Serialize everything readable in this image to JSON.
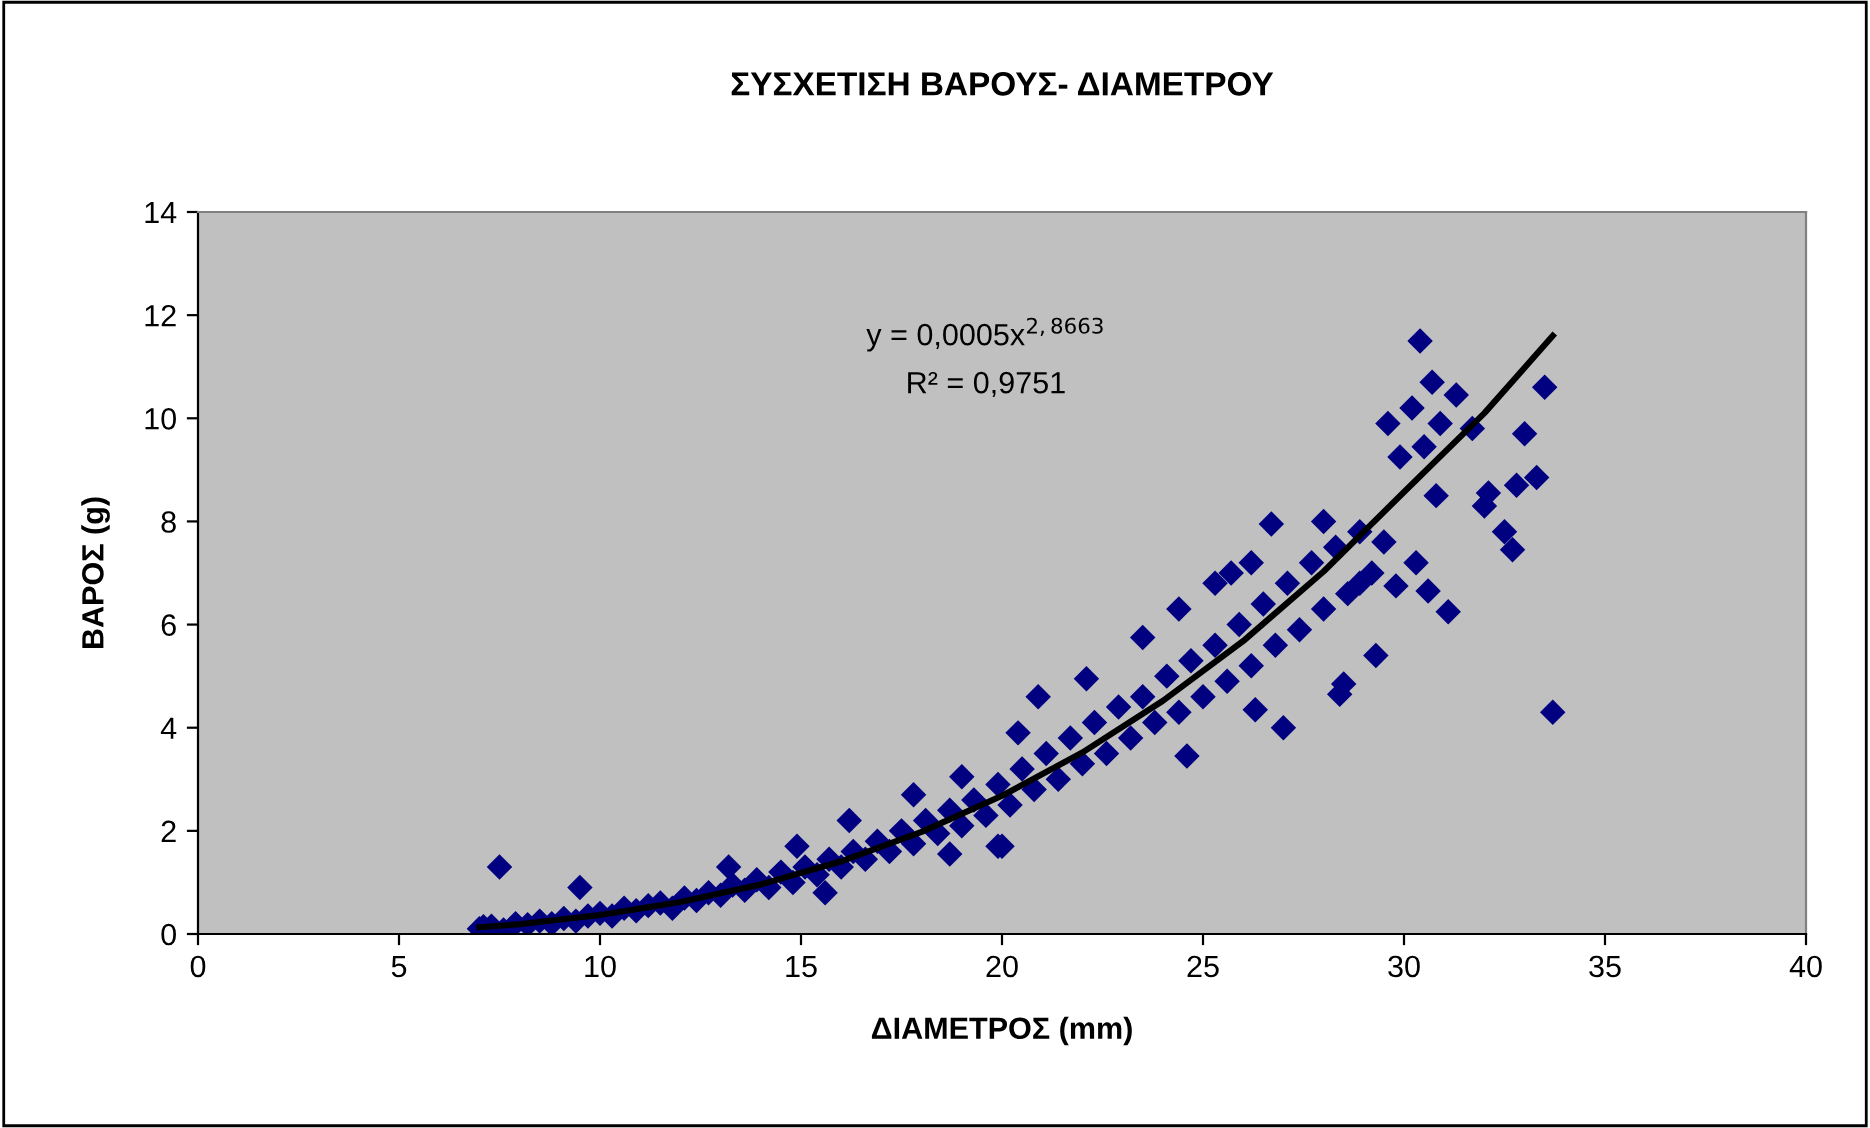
{
  "chart_data": {
    "type": "scatter",
    "title": "ΣΥΣΧΕΤΙΣΗ ΒΑΡΟΥΣ- ΔΙΑΜΕΤΡΟΥ",
    "xlabel": "ΔΙΑΜΕΤΡΟΣ (mm)",
    "ylabel": "ΒΑΡΟΣ (g)",
    "annotations": [
      "y = 0,0005x$^{2,8663}$",
      "R² = 0,9751"
    ],
    "xlim": [
      0,
      40
    ],
    "xticks": [
      0,
      5,
      10,
      15,
      20,
      25,
      30,
      35,
      40
    ],
    "ylim": [
      0,
      14
    ],
    "yticks": [
      0,
      2,
      4,
      6,
      8,
      10,
      12,
      14
    ],
    "grid": false,
    "legend": false,
    "series": [
      {
        "marker": "diamond",
        "color": "#000080",
        "x": [
          7.0,
          7.3,
          7.6,
          7.9,
          8.2,
          8.5,
          8.8,
          9.1,
          9.4,
          9.7,
          10.0,
          10.3,
          10.6,
          10.9,
          11.2,
          11.5,
          11.8,
          12.1,
          12.4,
          12.7,
          13.0,
          13.3,
          13.6,
          13.9,
          14.2,
          14.5,
          14.8,
          15.1,
          15.4,
          15.7,
          16.0,
          16.3,
          16.6,
          16.9,
          17.2,
          17.5,
          17.8,
          18.1,
          18.4,
          18.7,
          19.0,
          19.3,
          19.6,
          19.9,
          20.2,
          20.5,
          20.8,
          21.1,
          21.4,
          21.7,
          22.0,
          22.3,
          22.6,
          22.9,
          23.2,
          23.5,
          23.8,
          24.1,
          24.4,
          24.7,
          25.0,
          25.3,
          25.6,
          25.9,
          26.2,
          26.5,
          26.8,
          27.1,
          27.4,
          27.7,
          28.0,
          28.3,
          28.6,
          28.9,
          29.2,
          29.5,
          7.5,
          9.5,
          7.1,
          16.2,
          13.2,
          14.9,
          17.8,
          19.0,
          19.9,
          18.7,
          20.4,
          15.6,
          20.0,
          20.9,
          22.1,
          23.5,
          24.4,
          25.3,
          25.7,
          26.2,
          26.7,
          28.0,
          24.6,
          26.3,
          27.0,
          28.4,
          28.5,
          29.3,
          28.9,
          29.6,
          29.8,
          29.9,
          30.2,
          30.3,
          30.4,
          30.5,
          30.6,
          30.7,
          30.8,
          30.9,
          31.1,
          31.3,
          31.7,
          32.0,
          32.1,
          32.5,
          32.7,
          32.8,
          33.0,
          33.3,
          33.5,
          33.7
        ],
        "values": [
          0.1,
          0.15,
          0.08,
          0.2,
          0.18,
          0.25,
          0.2,
          0.3,
          0.25,
          0.35,
          0.4,
          0.35,
          0.5,
          0.45,
          0.55,
          0.6,
          0.5,
          0.7,
          0.65,
          0.8,
          0.75,
          0.95,
          0.85,
          1.05,
          0.9,
          1.2,
          1.0,
          1.3,
          1.15,
          1.45,
          1.3,
          1.6,
          1.45,
          1.8,
          1.6,
          2.0,
          1.75,
          2.2,
          1.95,
          2.4,
          2.1,
          2.6,
          2.3,
          2.9,
          2.5,
          3.2,
          2.8,
          3.5,
          3.0,
          3.8,
          3.3,
          4.1,
          3.5,
          4.4,
          3.8,
          4.6,
          4.1,
          5.0,
          4.3,
          5.3,
          4.6,
          5.6,
          4.9,
          6.0,
          5.2,
          6.4,
          5.6,
          6.8,
          5.9,
          7.2,
          6.3,
          7.5,
          6.6,
          7.8,
          7.0,
          7.6,
          1.3,
          0.9,
          0.14,
          2.2,
          1.3,
          1.7,
          2.7,
          3.05,
          1.7,
          1.55,
          3.9,
          0.8,
          1.7,
          4.6,
          4.95,
          5.75,
          6.3,
          6.8,
          7.0,
          7.2,
          7.95,
          8.0,
          3.45,
          4.35,
          4.0,
          4.65,
          4.85,
          5.4,
          6.8,
          9.9,
          6.75,
          9.25,
          10.2,
          7.2,
          11.5,
          9.45,
          6.65,
          10.7,
          8.5,
          9.9,
          6.25,
          10.45,
          9.8,
          8.3,
          8.55,
          7.8,
          7.45,
          8.7,
          9.7,
          8.85,
          10.6,
          4.3
        ]
      },
      {
        "type": "line",
        "color": "#000000",
        "line_style": "solid",
        "x": [
          7,
          8,
          10,
          12,
          14,
          16,
          18,
          20,
          22,
          24,
          26,
          28,
          30,
          32,
          33.7
        ],
        "values": [
          0.13,
          0.19,
          0.37,
          0.62,
          0.96,
          1.41,
          1.98,
          2.68,
          3.52,
          4.52,
          5.68,
          7.03,
          8.57,
          10.1,
          11.6
        ]
      }
    ]
  }
}
